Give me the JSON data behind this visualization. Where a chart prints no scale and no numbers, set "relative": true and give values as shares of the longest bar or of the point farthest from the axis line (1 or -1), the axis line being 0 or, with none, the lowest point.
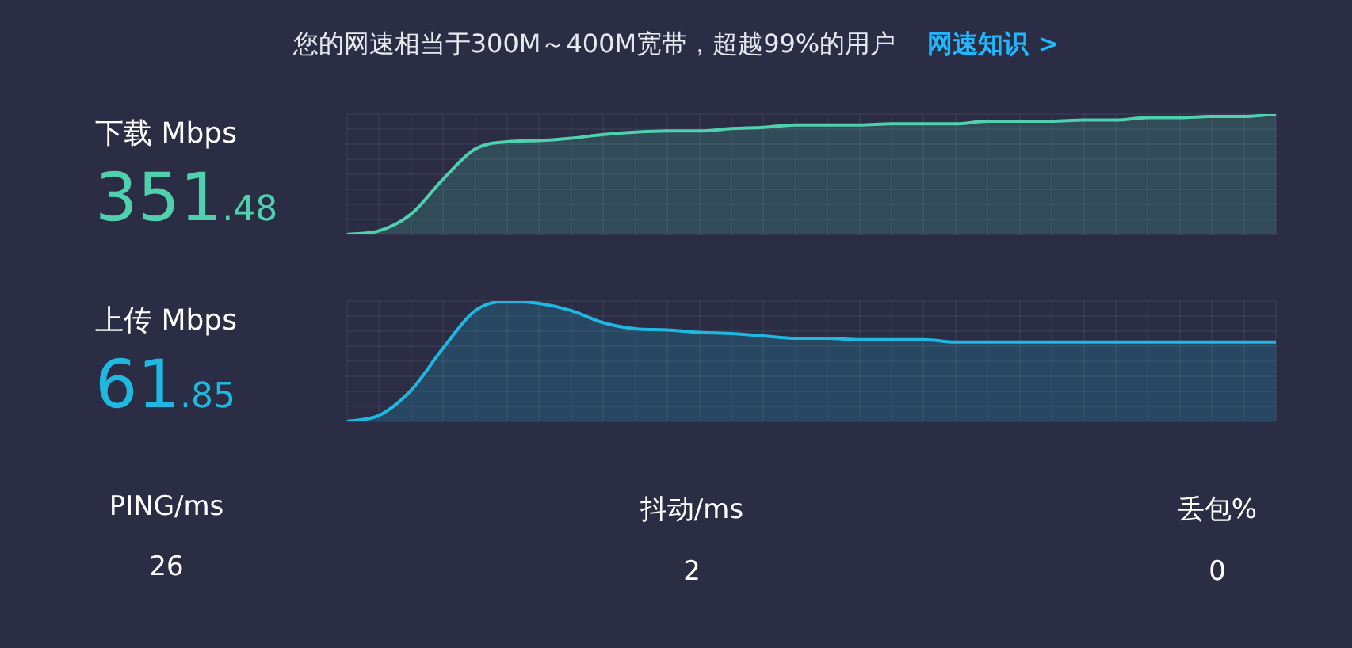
{
  "chart_data": [
    {
      "type": "other",
      "title": "您的网速相当于300M～400M宽带，超越99%的用户",
      "annotations": [
        "网速知识 >"
      ]
    },
    {
      "type": "area",
      "title": "下载 Mbps",
      "annotations": [
        "351.48"
      ],
      "relative": true,
      "grid": true,
      "categories": [
        null,
        null,
        null,
        null,
        null,
        null,
        null,
        null,
        null,
        null,
        null,
        null,
        null,
        null,
        null,
        null,
        null,
        null,
        null,
        null,
        null,
        null,
        null,
        null,
        null,
        null,
        null,
        null,
        null,
        null
      ],
      "series": [
        {
          "color": "#4fd1b0",
          "values": [
            0,
            0.03,
            0.17,
            0.46,
            0.71,
            0.77,
            0.78,
            0.8,
            0.83,
            0.85,
            0.86,
            0.86,
            0.88,
            0.89,
            0.91,
            0.91,
            0.91,
            0.92,
            0.92,
            0.92,
            0.94,
            0.94,
            0.94,
            0.95,
            0.95,
            0.97,
            0.97,
            0.98,
            0.98,
            1
          ]
        }
      ]
    },
    {
      "type": "area",
      "title": "上传 Mbps",
      "annotations": [
        "61.85"
      ],
      "relative": true,
      "grid": true,
      "categories": [
        null,
        null,
        null,
        null,
        null,
        null,
        null,
        null,
        null,
        null,
        null,
        null,
        null,
        null,
        null,
        null,
        null,
        null,
        null,
        null,
        null,
        null,
        null,
        null,
        null,
        null,
        null,
        null,
        null,
        null
      ],
      "series": [
        {
          "color": "#1eb8e0",
          "values": [
            0,
            0.05,
            0.26,
            0.61,
            0.92,
            1,
            0.98,
            0.92,
            0.82,
            0.77,
            0.76,
            0.74,
            0.73,
            0.71,
            0.69,
            0.69,
            0.68,
            0.68,
            0.68,
            0.66,
            0.66,
            0.66,
            0.66,
            0.66,
            0.66,
            0.66,
            0.66,
            0.66,
            0.66,
            0.66
          ]
        }
      ]
    },
    {
      "type": "other",
      "annotations": [
        "PING/ms",
        "26",
        "抖动/ms",
        "2",
        "丢包%",
        "0"
      ]
    }
  ]
}
